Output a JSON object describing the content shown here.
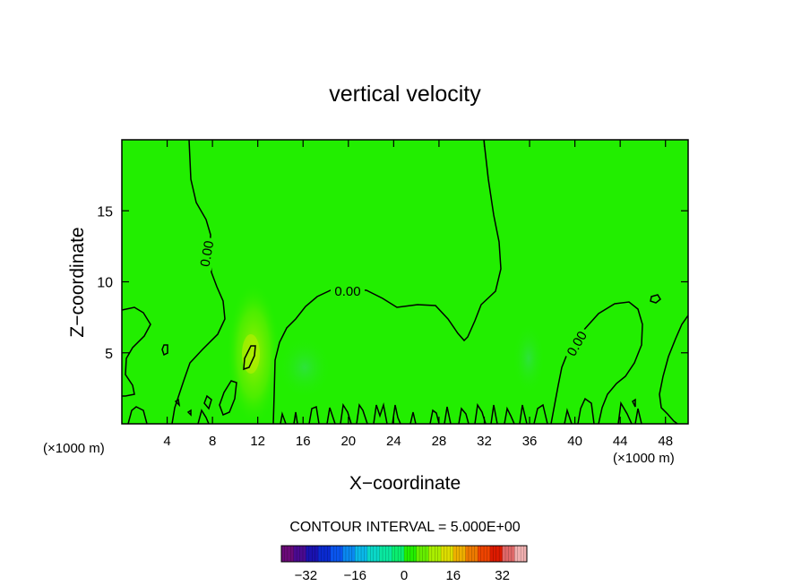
{
  "chart_data": {
    "type": "heatmap",
    "title": "vertical velocity",
    "xlabel": "X−coordinate",
    "ylabel": "Z−coordinate",
    "x_unit_left": "(×1000 m)",
    "x_unit_right": "(×1000 m)",
    "xlim": [
      0,
      50
    ],
    "ylim": [
      0,
      20
    ],
    "x_ticks": [
      4,
      8,
      12,
      16,
      20,
      24,
      28,
      32,
      36,
      40,
      44,
      48
    ],
    "y_ticks": [
      5,
      10,
      15
    ],
    "contour_labels": [
      {
        "text": "0.00",
        "x": 7.5,
        "y": 12.5,
        "angle": -80
      },
      {
        "text": "0.00",
        "x": 20,
        "y": 9.6,
        "angle": 0
      },
      {
        "text": "0.00",
        "x": 40,
        "y": 5.8,
        "angle": -60
      }
    ],
    "field_colors": {
      "background": "#22ee00",
      "warm": "#aaee00",
      "cool": "#33dd55"
    },
    "contour_interval_text": "CONTOUR INTERVAL =  5.000E+00",
    "colorbar": {
      "range": [
        -40,
        40
      ],
      "ticks": [
        -32,
        -16,
        0,
        16,
        32
      ],
      "tick_labels": [
        "−32",
        "−16",
        "0",
        "16",
        "32"
      ],
      "colors": [
        "#6a0a78",
        "#4a0a90",
        "#1a12b0",
        "#0a2ad0",
        "#0a55ee",
        "#0a88f0",
        "#0ab8e8",
        "#0ad8c8",
        "#0ae8a0",
        "#0aee70",
        "#22ee00",
        "#66ee00",
        "#aaee00",
        "#dddd00",
        "#eeb000",
        "#ee7a00",
        "#ee4400",
        "#dd1a00",
        "#e06868",
        "#f0b0b0"
      ]
    }
  }
}
